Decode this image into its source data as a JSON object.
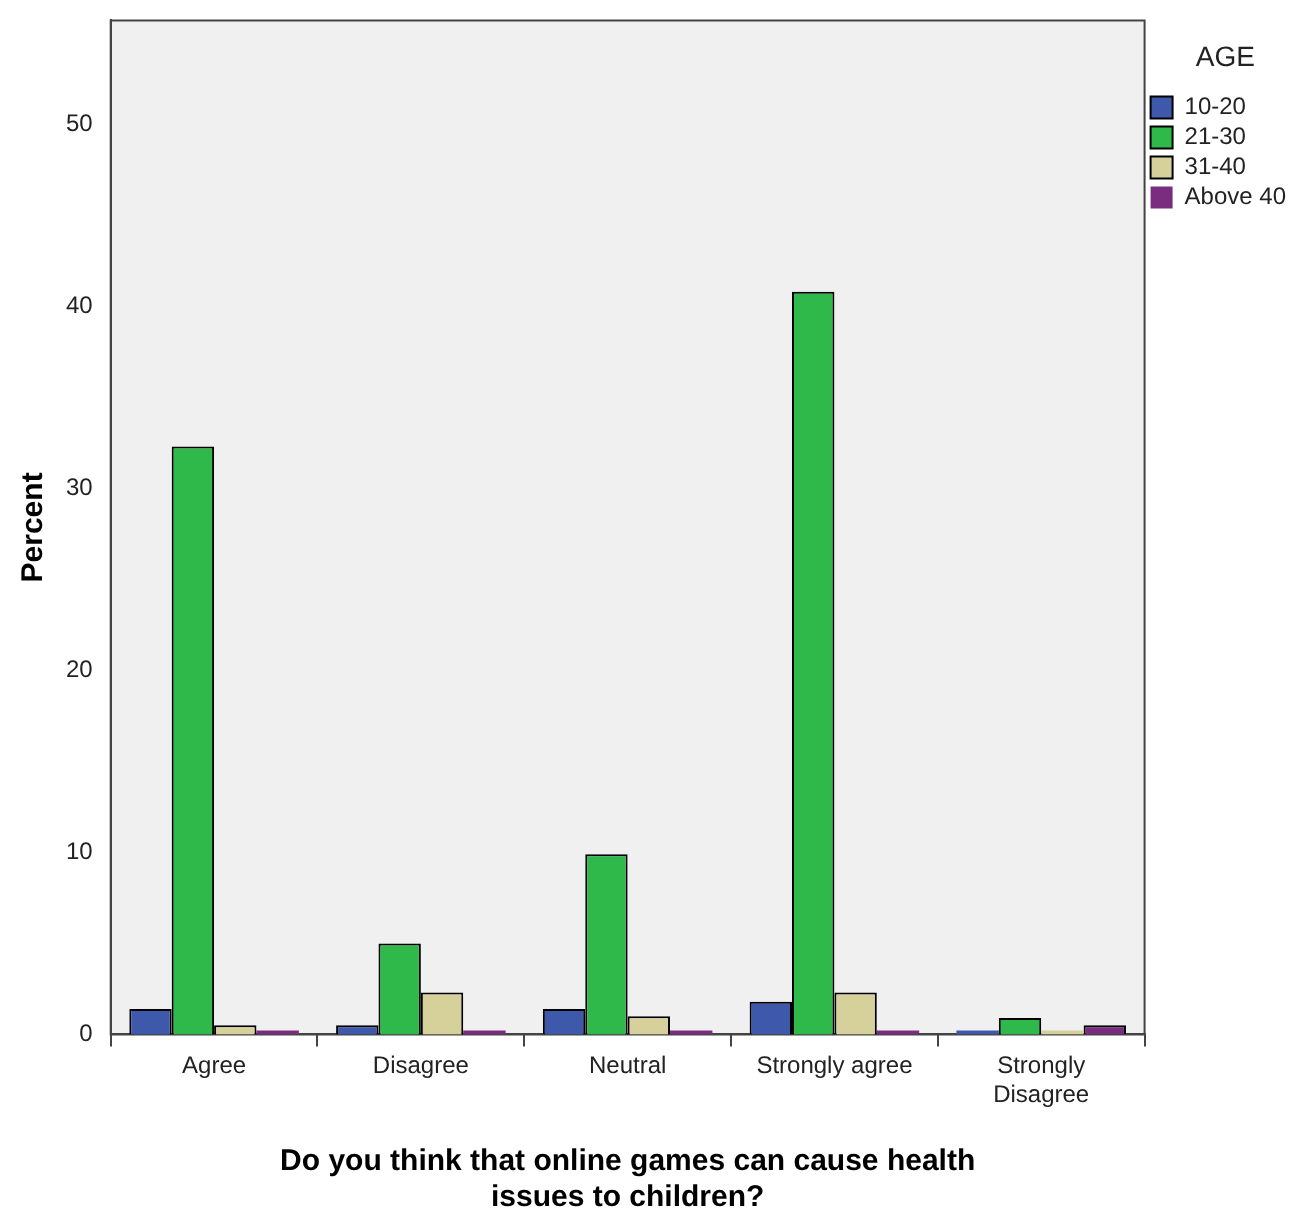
{
  "chart_data": {
    "type": "bar",
    "xlabel": "Do you think that online games can cause health issues to children?",
    "ylabel": "Percent",
    "legend_title": "AGE",
    "categories": [
      "Agree",
      "Disagree",
      "Neutral",
      "Strongly agree",
      "Strongly Disagree"
    ],
    "series": [
      {
        "name": "10-20",
        "color": "#3e58ac",
        "values": [
          1.4,
          0.5,
          1.4,
          1.8,
          0
        ]
      },
      {
        "name": "21-30",
        "color": "#2fb94a",
        "values": [
          32.3,
          5.0,
          9.9,
          40.8,
          0.9
        ]
      },
      {
        "name": "31-40",
        "color": "#d6d09a",
        "values": [
          0.5,
          2.3,
          1.0,
          2.3,
          0
        ]
      },
      {
        "name": "Above 40",
        "color": "#7a2d7f",
        "values": [
          0,
          0,
          0,
          0,
          0.5
        ]
      }
    ],
    "ylim": [
      0,
      55.7
    ],
    "yticks": [
      0,
      10,
      20,
      30,
      40,
      50
    ],
    "grid": false,
    "legend": "top right"
  }
}
